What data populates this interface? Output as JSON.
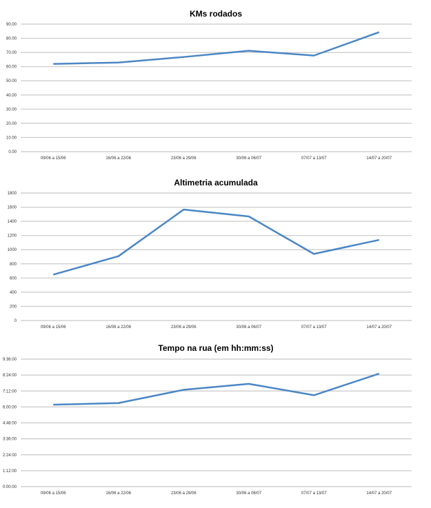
{
  "chart_data": [
    {
      "type": "line",
      "title": "KMs rodados",
      "categories": [
        "09/06 a 15/06",
        "16/06 a 22/06",
        "23/06 a 29/06",
        "30/06 a 06/07",
        "07/07 a 13/07",
        "14/07 a 20/07"
      ],
      "values": [
        61.9,
        62.9,
        66.8,
        71.2,
        67.8,
        84.3
      ],
      "ylim": [
        0,
        90
      ],
      "yticks": [
        "0.00",
        "10.00",
        "20.00",
        "30.00",
        "40.00",
        "50.00",
        "60.00",
        "70.00",
        "80.00",
        "90.00"
      ],
      "grid": true,
      "xlabel": "",
      "ylabel": ""
    },
    {
      "type": "line",
      "title": "Altimetria acumulada",
      "categories": [
        "09/06 a 15/06",
        "16/06 a 22/06",
        "23/06 a 29/06",
        "30/06 a 06/07",
        "07/07 a 13/07",
        "14/07 a 20/07"
      ],
      "values": [
        648,
        908,
        1566,
        1469,
        940,
        1138
      ],
      "ylim": [
        0,
        1800
      ],
      "yticks": [
        "0",
        "200",
        "400",
        "600",
        "800",
        "1000",
        "1200",
        "1400",
        "1600",
        "1800"
      ],
      "grid": true,
      "xlabel": "",
      "ylabel": ""
    },
    {
      "type": "line",
      "title": "Tempo na rua (em hh:mm:ss)",
      "categories": [
        "09/06 a 15/06",
        "16/06 a 22/06",
        "23/06 a 29/06",
        "30/06 a 06/07",
        "07/07 a 13/07",
        "14/07 a 20/07"
      ],
      "values_hours": [
        6.17,
        6.29,
        7.29,
        7.74,
        6.88,
        8.51
      ],
      "values_labels": [
        "6:10:00",
        "6:17:00",
        "7:17:00",
        "7:44:00",
        "6:53:00",
        "8:31:00"
      ],
      "ylim": [
        0,
        9.6
      ],
      "yticks": [
        "0:00:00",
        "1:12:00",
        "2:24:00",
        "3:36:00",
        "4:48:00",
        "6:00:00",
        "7:12:00",
        "8:24:00",
        "9:36:00"
      ],
      "grid": true,
      "xlabel": "",
      "ylabel": ""
    }
  ],
  "colors": {
    "line": "#4a86c5",
    "grid": "#c8c8c8"
  }
}
